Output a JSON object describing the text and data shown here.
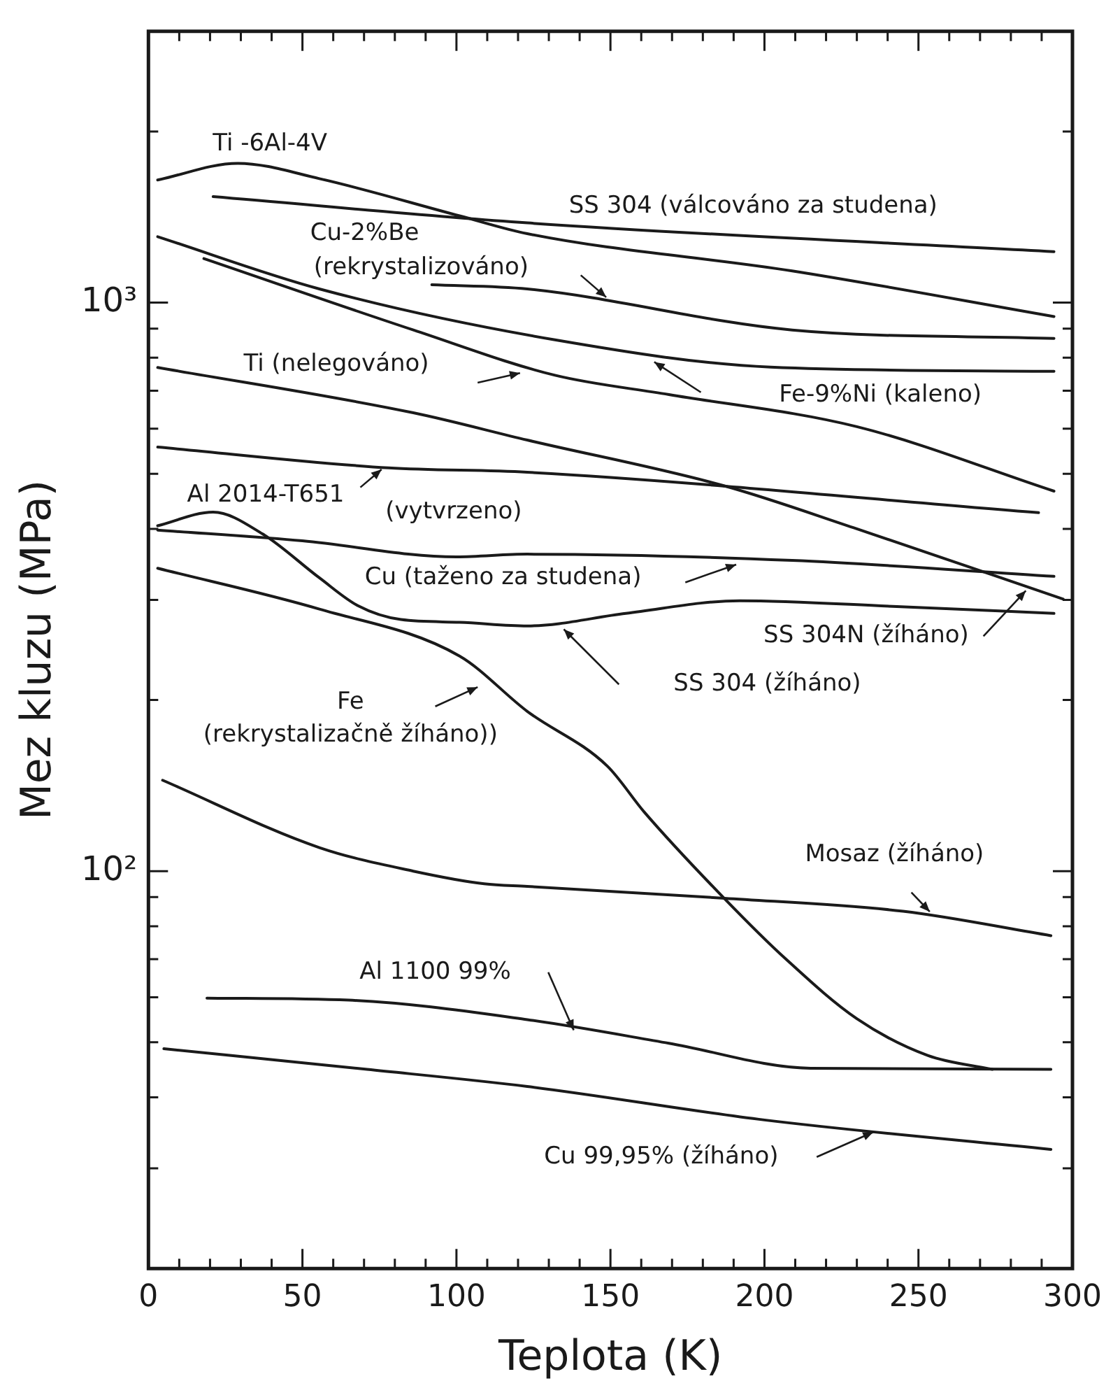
{
  "chart_data": {
    "type": "line",
    "xlabel": "Teplota (K)",
    "ylabel": "Mez kluzu (MPa)",
    "log": "y",
    "grid": false,
    "legend": false,
    "marker": "none",
    "line_style": "solid",
    "xlim": [
      0,
      300
    ],
    "xticks": [
      0,
      {
        "value": 10,
        "label": null
      },
      {
        "value": 20,
        "label": null
      },
      {
        "value": 30,
        "label": null
      },
      {
        "value": 40,
        "label": null
      },
      50,
      {
        "value": 60,
        "label": null
      },
      {
        "value": 70,
        "label": null
      },
      {
        "value": 80,
        "label": null
      },
      {
        "value": 90,
        "label": null
      },
      100,
      {
        "value": 110,
        "label": null
      },
      {
        "value": 120,
        "label": null
      },
      {
        "value": 130,
        "label": null
      },
      {
        "value": 140,
        "label": null
      },
      150,
      {
        "value": 160,
        "label": null
      },
      {
        "value": 170,
        "label": null
      },
      {
        "value": 180,
        "label": null
      },
      {
        "value": 190,
        "label": null
      },
      200,
      {
        "value": 210,
        "label": null
      },
      {
        "value": 220,
        "label": null
      },
      {
        "value": 230,
        "label": null
      },
      {
        "value": 240,
        "label": null
      },
      250,
      {
        "value": 260,
        "label": null
      },
      {
        "value": 270,
        "label": null
      },
      {
        "value": 280,
        "label": null
      },
      {
        "value": 290,
        "label": null
      },
      300
    ],
    "ylim": [
      20,
      3000
    ],
    "yticks": [
      {
        "value": 30,
        "label": null
      },
      {
        "value": 40,
        "label": null
      },
      {
        "value": 50,
        "label": null
      },
      {
        "value": 60,
        "label": null
      },
      {
        "value": 70,
        "label": null
      },
      {
        "value": 80,
        "label": null
      },
      {
        "value": 90,
        "label": null
      },
      {
        "value": 100,
        "label": "10²"
      },
      {
        "value": 200,
        "label": null
      },
      {
        "value": 300,
        "label": null
      },
      {
        "value": 400,
        "label": null
      },
      {
        "value": 500,
        "label": null
      },
      {
        "value": 600,
        "label": null
      },
      {
        "value": 700,
        "label": null
      },
      {
        "value": 800,
        "label": null
      },
      {
        "value": 900,
        "label": null
      },
      {
        "value": 1000,
        "label": "10³"
      },
      {
        "value": 2000,
        "label": null
      }
    ],
    "series": [
      {
        "color": "#1a1a1a",
        "x": [
          3,
          29,
          55.5,
          101,
          123,
          209,
          294
        ],
        "values": [
          1643,
          1758,
          1652,
          1421,
          1322,
          1137,
          945
        ]
      },
      {
        "color": "#1a1a1a",
        "x": [
          21,
          123,
          294
        ],
        "values": [
          1536,
          1381,
          1229
        ]
      },
      {
        "color": "#1a1a1a",
        "x": [
          92,
          123,
          209,
          294
        ],
        "values": [
          1075,
          1057,
          895,
          865
        ]
      },
      {
        "color": "#1a1a1a",
        "x": [
          3,
          55.5,
          132,
          202,
          294
        ],
        "values": [
          1306,
          1057,
          860,
          770,
          757
        ]
      },
      {
        "color": "#1a1a1a",
        "x": [
          18,
          86,
          132,
          169,
          230,
          294
        ],
        "values": [
          1195,
          895,
          745,
          689,
          605,
          466
        ]
      },
      {
        "color": "#1a1a1a",
        "x": [
          3,
          86,
          123,
          187,
          230,
          297
        ],
        "values": [
          769,
          640,
          573,
          476,
          400,
          301
        ]
      },
      {
        "color": "#1a1a1a",
        "x": [
          3,
          78,
          123,
          289
        ],
        "values": [
          557,
          512,
          503,
          427
        ]
      },
      {
        "color": "#1a1a1a",
        "x": [
          3,
          50,
          100,
          123,
          209,
          294
        ],
        "values": [
          398,
          381,
          357,
          361,
          352,
          330
        ]
      },
      {
        "color": "#1a1a1a",
        "x": [
          3,
          21,
          37,
          55.5,
          68,
          82,
          101,
          123,
          155,
          192,
          243,
          294
        ],
        "values": [
          405,
          428,
          392,
          328,
          293,
          277,
          274,
          270,
          284,
          299,
          292,
          284
        ]
      },
      {
        "color": "#1a1a1a",
        "x": [
          3,
          55.5,
          101,
          123,
          149,
          161,
          187,
          207,
          230,
          253,
          274
        ],
        "values": [
          341,
          289,
          239,
          191,
          153,
          127,
          89.5,
          70,
          55,
          47.4,
          44.8
        ]
      },
      {
        "color": "#1a1a1a",
        "x": [
          4.6,
          55.5,
          86,
          109,
          123,
          187,
          245,
          293
        ],
        "values": [
          144.5,
          110,
          100,
          95,
          94,
          89.6,
          85,
          77
        ]
      },
      {
        "color": "#1a1a1a",
        "x": [
          19,
          65,
          123,
          169,
          215,
          293
        ],
        "values": [
          59.8,
          59.3,
          54.8,
          49.8,
          45,
          44.8
        ]
      },
      {
        "color": "#1a1a1a",
        "x": [
          5,
          71,
          123,
          200,
          293
        ],
        "values": [
          48.7,
          44.8,
          41.8,
          36.5,
          32.4
        ]
      }
    ],
    "annotations": [
      "Ti -6Al-4V",
      "SS 304 (válcováno za studena)",
      "Cu-2%Be\n(rekrystalizováno)",
      "Ti (nelegováno)",
      "Fe-9%Ni (kaleno)",
      "Al 2014-T651",
      "(vytvrzeno)",
      "Cu (taženo za studena)",
      "SS 304N (žíháno)",
      "SS 304 (žíháno)",
      "Fe\n(rekrystalizačně žíháno))",
      "Mosaz (žíháno)",
      "Al 1100 99%",
      "Cu 99,95% (žíháno)"
    ]
  }
}
